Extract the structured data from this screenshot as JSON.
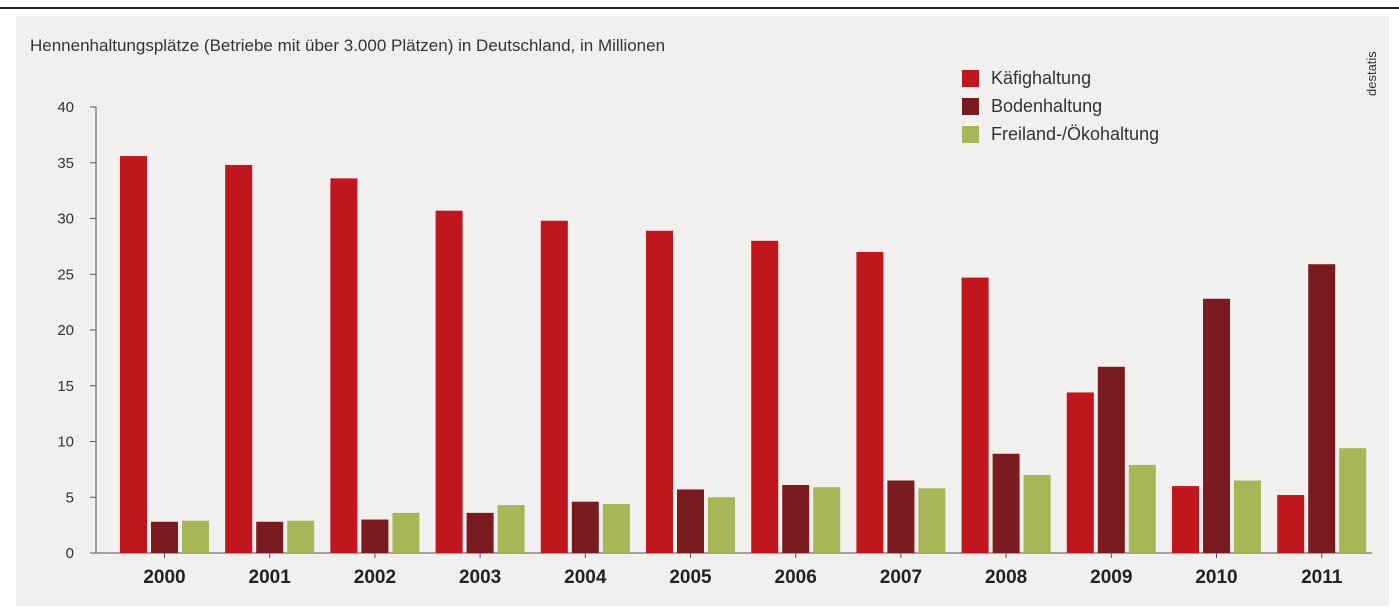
{
  "title": "Hennenhaltungsplätze (Betriebe mit über 3.000 Plätzen) in Deutschland, in Millionen",
  "source": "destatis",
  "colors": {
    "cage": "#c0171f",
    "barn": "#7a1c1f",
    "free": "#a8b65a"
  },
  "chart_data": {
    "type": "bar",
    "title": "Hennenhaltungsplätze (Betriebe mit über 3.000 Plätzen) in Deutschland, in Millionen",
    "categories": [
      "2000",
      "2001",
      "2002",
      "2003",
      "2004",
      "2005",
      "2006",
      "2007",
      "2008",
      "2009",
      "2010",
      "2011"
    ],
    "series": [
      {
        "name": "Käfighaltung",
        "color": "#c0171f",
        "values": [
          35.6,
          34.8,
          33.6,
          30.7,
          29.8,
          28.9,
          28.0,
          27.0,
          24.7,
          14.4,
          6.0,
          5.2
        ]
      },
      {
        "name": "Bodenhaltung",
        "color": "#7a1c1f",
        "values": [
          2.8,
          2.8,
          3.0,
          3.6,
          4.6,
          5.7,
          6.1,
          6.5,
          8.9,
          16.7,
          22.8,
          25.9
        ]
      },
      {
        "name": "Freiland-/Ökohaltung",
        "color": "#a8b65a",
        "values": [
          2.9,
          2.9,
          3.6,
          4.3,
          4.4,
          5.0,
          5.9,
          5.8,
          7.0,
          7.9,
          6.5,
          9.4
        ]
      }
    ],
    "yticks": [
      "0",
      "5",
      "10",
      "15",
      "20",
      "25",
      "30",
      "35",
      "40"
    ],
    "ylim": [
      0,
      40
    ],
    "grid": false,
    "legend": "top-right"
  }
}
